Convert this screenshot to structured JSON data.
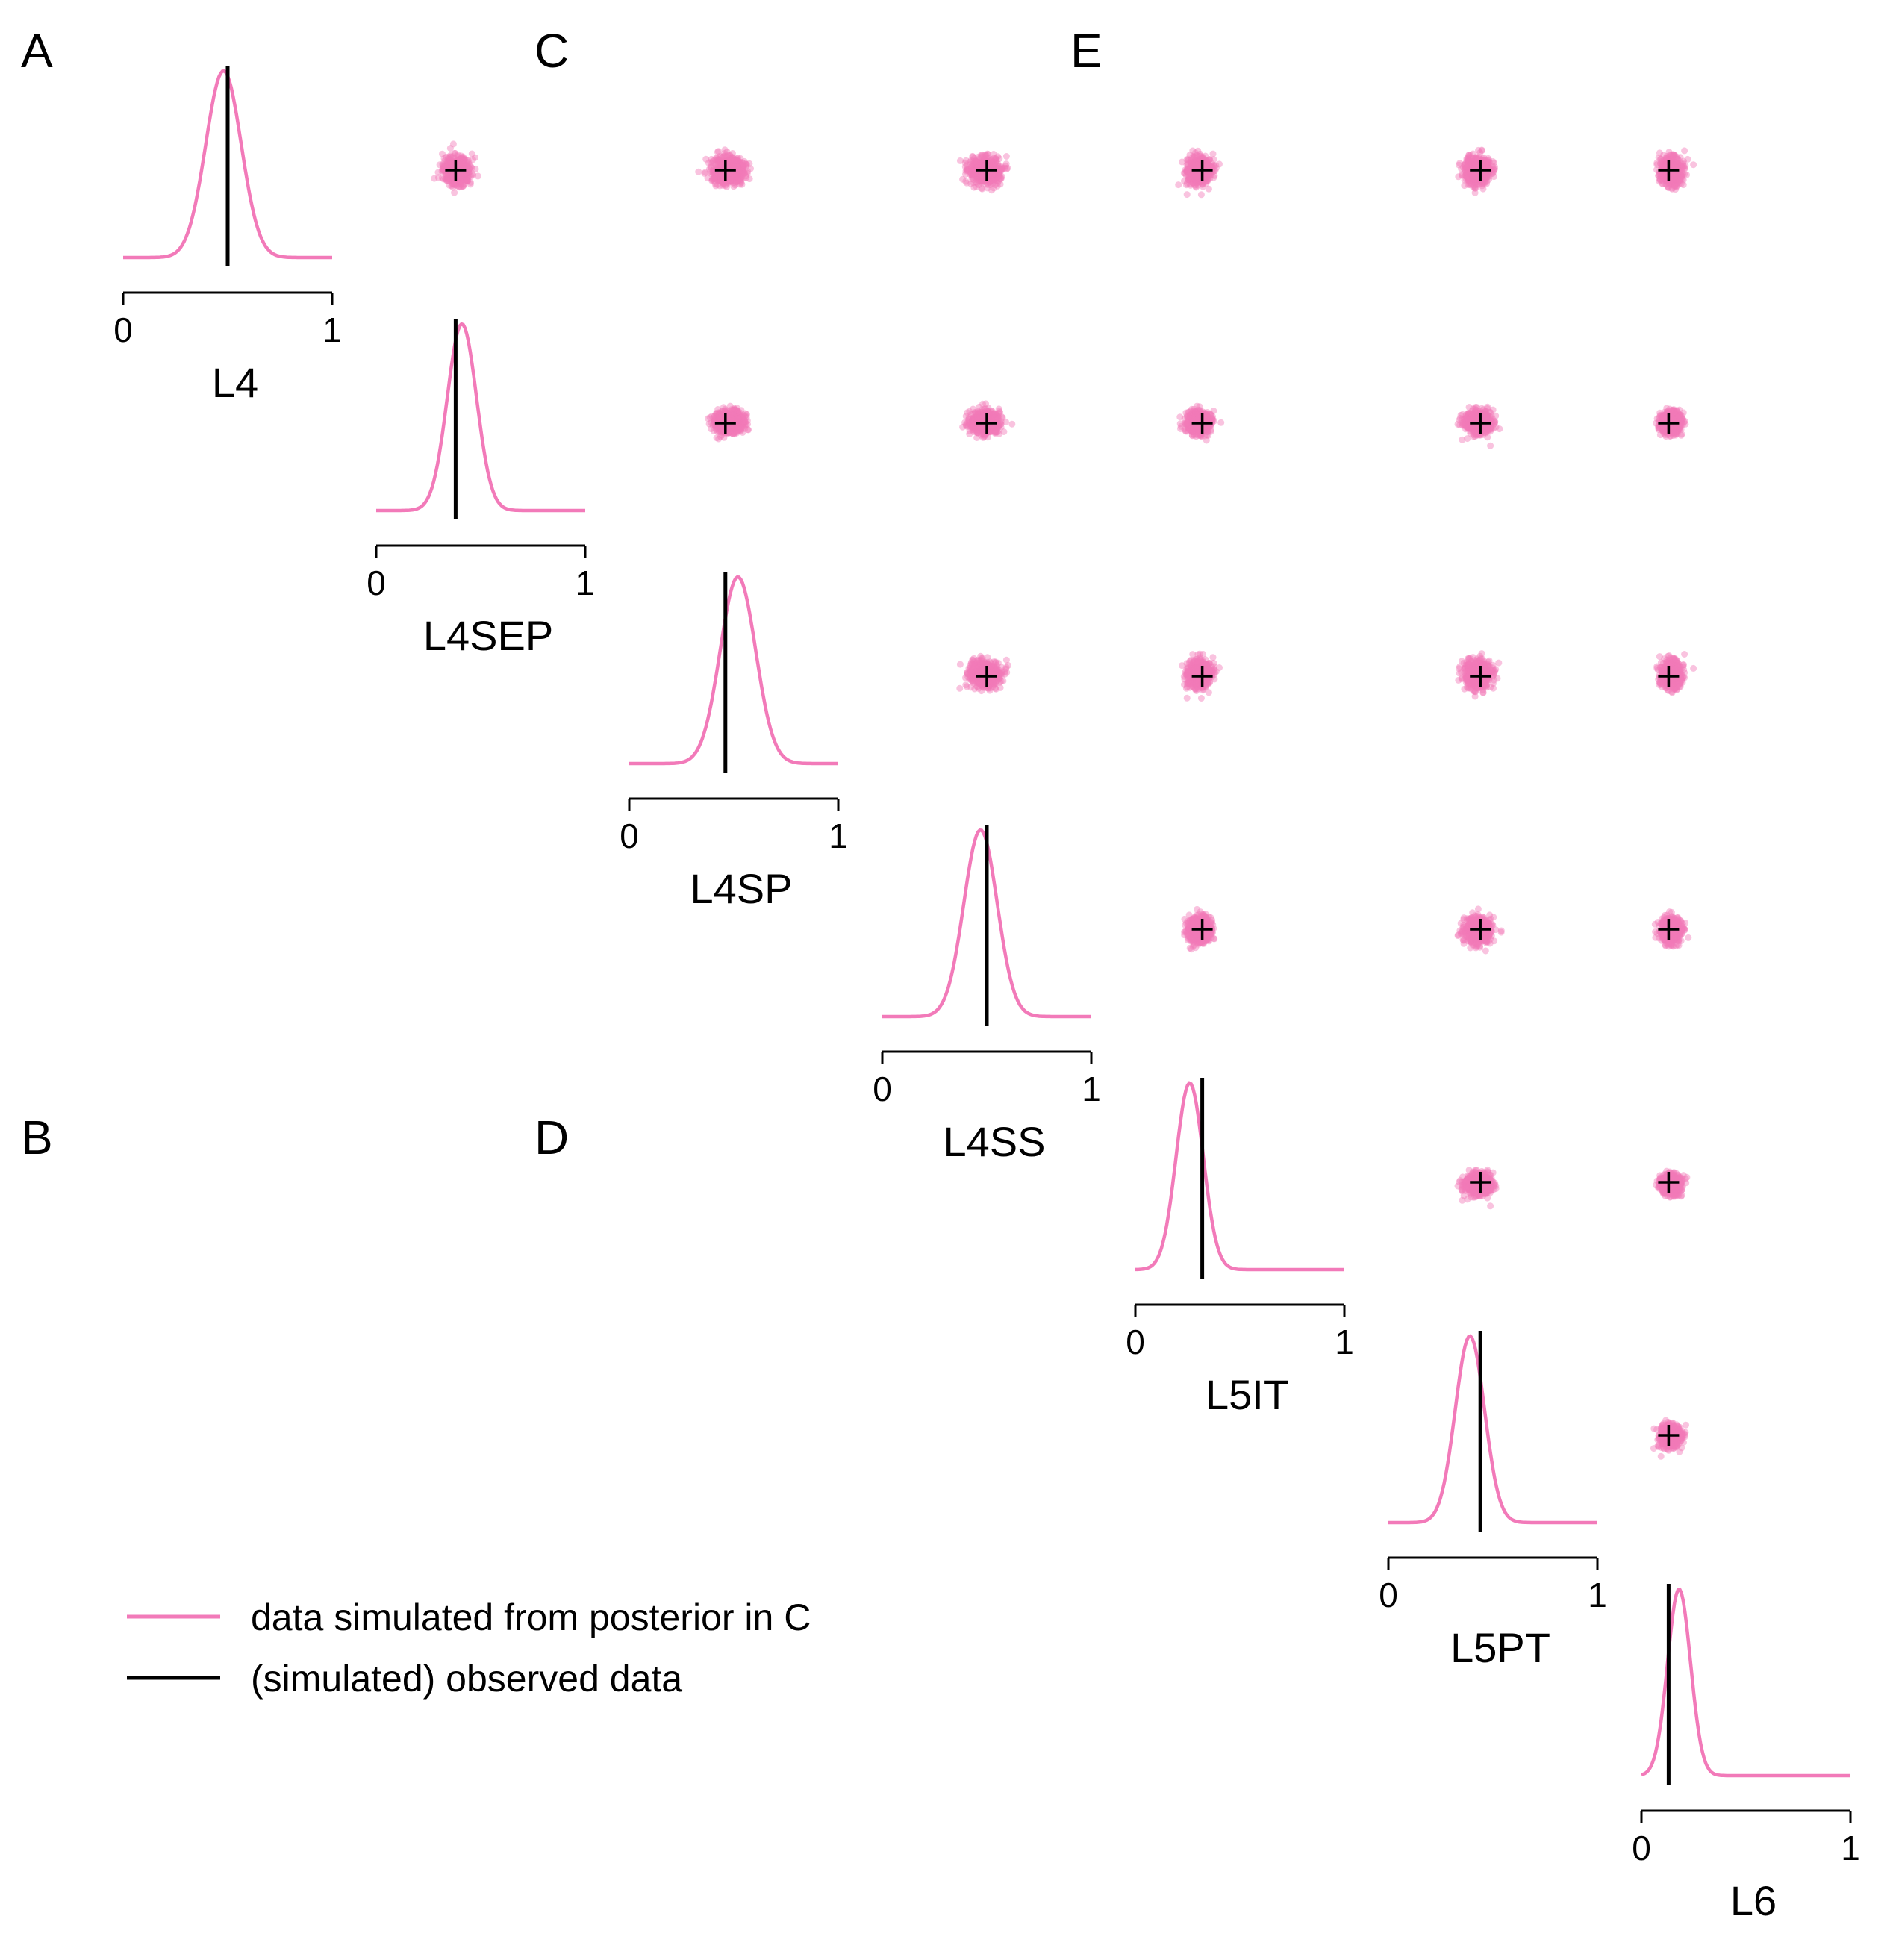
{
  "panel_letters": [
    "A",
    "B",
    "C",
    "D",
    "E"
  ],
  "colors": {
    "simulated": "#f27ab9",
    "observed": "#000000"
  },
  "legend": {
    "simulated_label": "data simulated from posterior in C",
    "observed_label": "(simulated) observed data"
  },
  "chart_data": {
    "type": "pairplot",
    "description_elements": [
      "diagonal: kernel density of simulated data with observed value marked by vertical line",
      "upper triangle: scatter of simulated data pairs with observed value marked by +"
    ],
    "variables": [
      "L4",
      "L4SEP",
      "L4SP",
      "L4SS",
      "L5IT",
      "L5PT",
      "L6"
    ],
    "xlim": [
      0,
      1
    ],
    "ticks": [
      0,
      1
    ],
    "tick_labels": [
      "0",
      "1"
    ],
    "observed": [
      0.5,
      0.38,
      0.46,
      0.5,
      0.32,
      0.44,
      0.13
    ],
    "posterior_predictive_mean": [
      0.48,
      0.41,
      0.52,
      0.47,
      0.26,
      0.39,
      0.18
    ],
    "posterior_predictive_sd": [
      0.085,
      0.07,
      0.085,
      0.08,
      0.065,
      0.07,
      0.055
    ],
    "points_per_scatter": 600,
    "scatter_alpha": 0.45
  }
}
